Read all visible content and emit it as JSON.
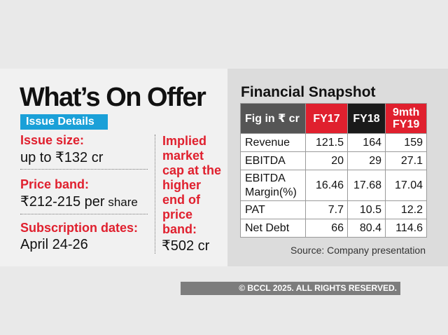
{
  "headline": "What’s On Offer",
  "issue_badge": "Issue Details",
  "issue_size": {
    "label": "Issue size:",
    "value": "up to ₹132 cr"
  },
  "price_band": {
    "label": "Price band:",
    "value_main": "₹212-215 per",
    "value_suffix": " share"
  },
  "subscription": {
    "label": "Subscription dates:",
    "value": "April 24-26"
  },
  "implied": {
    "label": "Implied\nmarket\ncap at the\nhigher\nend of\nprice\nband:",
    "value": "₹502 cr"
  },
  "financial": {
    "title": "Financial Snapshot",
    "headers": [
      "Fig in ₹ cr",
      "FY17",
      "FY18",
      "9mth FY19"
    ],
    "rows": [
      {
        "label": "Revenue",
        "fy17": "121.5",
        "fy18": "164",
        "fy19": "159"
      },
      {
        "label": "EBITDA",
        "fy17": "20",
        "fy18": "29",
        "fy19": "27.1"
      },
      {
        "label": "EBITDA Margin(%)",
        "fy17": "16.46",
        "fy18": "17.68",
        "fy19": "17.04"
      },
      {
        "label": "PAT",
        "fy17": "7.7",
        "fy18": "10.5",
        "fy19": "12.2"
      },
      {
        "label": "Net Debt",
        "fy17": "66",
        "fy18": "80.4",
        "fy19": "114.6"
      }
    ],
    "source": "Source: Company presentation"
  },
  "copyright": "© BCCL 2025. ALL RIGHTS RESERVED.",
  "colors": {
    "accent_red": "#e0202e",
    "badge_blue": "#1aa0d8",
    "dark": "#1a1a1a"
  }
}
